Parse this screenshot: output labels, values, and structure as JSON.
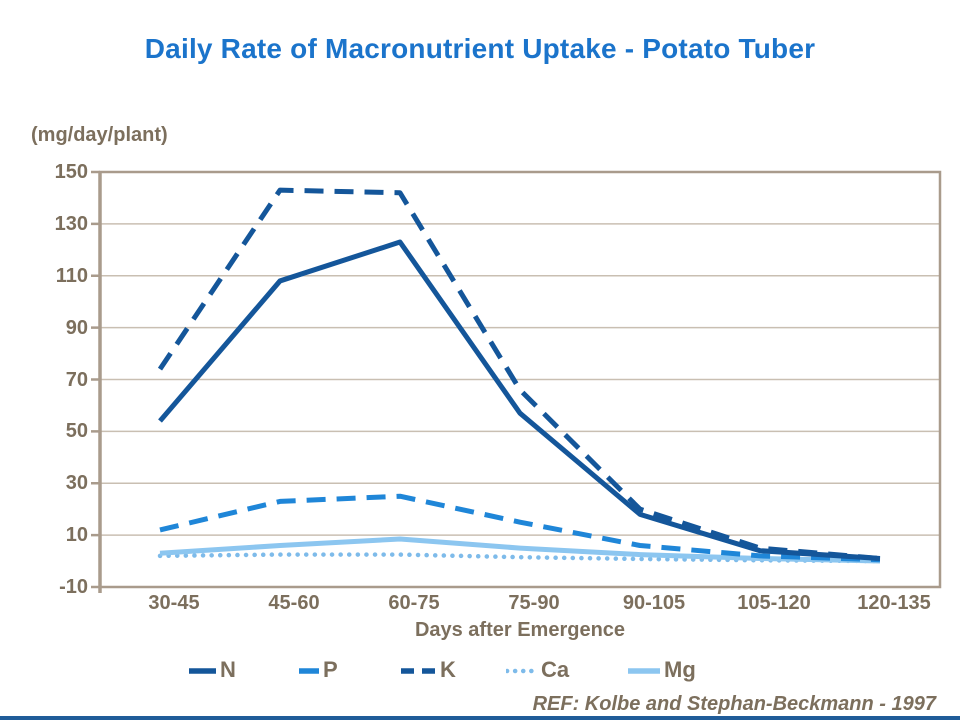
{
  "title": "Daily Rate of Macronutrient Uptake - Potato Tuber",
  "y_axis_unit": "(mg/day/plant)",
  "x_axis_title": "Days after Emergence",
  "ref_text": "REF: Kolbe and Stephan-Beckmann - 1997",
  "colors": {
    "title_blue": "#1B74CB",
    "axis_text_brown": "#7C6F5D",
    "gridline": "#C9BFB2",
    "axis_line": "#A99B8C",
    "bottom_bar_navy": "#1F5C99",
    "series_navy": "#14569A",
    "series_bright_blue": "#1F86D8",
    "series_light_blue_ca": "#7EBBEA",
    "series_light_blue_mg": "#8CC6F0"
  },
  "chart_data": {
    "type": "line",
    "title": "Daily Rate of Macronutrient Uptake - Potato Tuber",
    "xlabel": "Days after Emergence",
    "ylabel": "(mg/day/plant)",
    "categories": [
      "30-45",
      "45-60",
      "60-75",
      "75-90",
      "90-105",
      "105-120",
      "120-135"
    ],
    "series": [
      {
        "name": "N",
        "values": [
          54,
          108,
          123,
          57,
          18,
          4,
          1
        ],
        "color": "#14569A",
        "style": "solid"
      },
      {
        "name": "P",
        "values": [
          12,
          23,
          25,
          15,
          6,
          2,
          0.5
        ],
        "color": "#1F86D8",
        "style": "dashed"
      },
      {
        "name": "K",
        "values": [
          74,
          143,
          142,
          66,
          20,
          5,
          1
        ],
        "color": "#14569A",
        "style": "dashed"
      },
      {
        "name": "Ca",
        "values": [
          2,
          2.5,
          2.5,
          1.5,
          0.8,
          0.3,
          0
        ],
        "color": "#7EBBEA",
        "style": "dotted"
      },
      {
        "name": "Mg",
        "values": [
          3,
          6,
          8.5,
          5,
          2.5,
          1,
          0
        ],
        "color": "#8CC6F0",
        "style": "solid"
      }
    ],
    "ylim": [
      -10,
      150
    ],
    "yticks": [
      150,
      130,
      110,
      90,
      70,
      50,
      30,
      10,
      -10
    ],
    "grid": "horizontal",
    "legend_position": "bottom"
  }
}
